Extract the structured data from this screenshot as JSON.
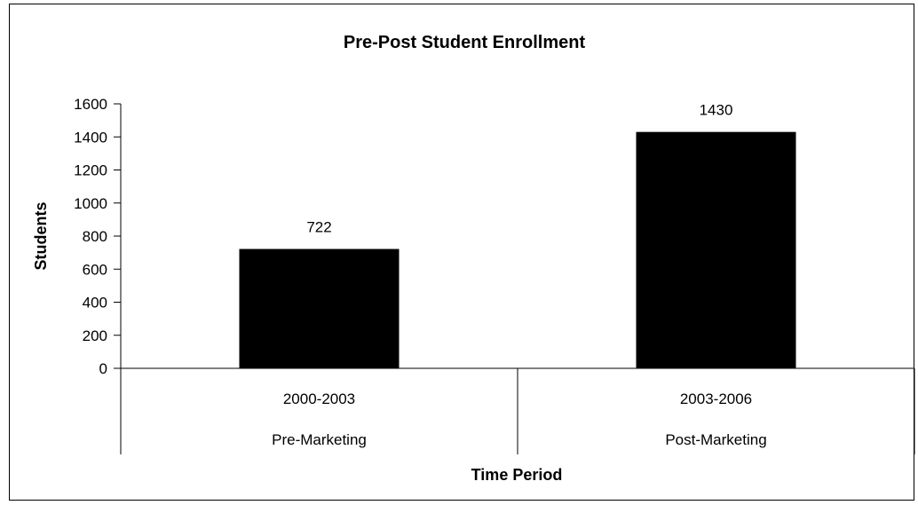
{
  "chart_data": {
    "type": "bar",
    "title": "Pre-Post Student Enrollment",
    "xlabel": "Time Period",
    "ylabel": "Students",
    "categories": [
      "2000-2003",
      "2003-2006"
    ],
    "category_groups": [
      "Pre-Marketing",
      "Post-Marketing"
    ],
    "values": [
      722,
      1430
    ],
    "data_labels": [
      "722",
      "1430"
    ],
    "ylim": [
      0,
      1600
    ],
    "yticks": [
      "0",
      "200",
      "400",
      "600",
      "800",
      "1000",
      "1200",
      "1400",
      "1600"
    ],
    "grid": false,
    "legend": "none",
    "bar_color": "#000000"
  }
}
